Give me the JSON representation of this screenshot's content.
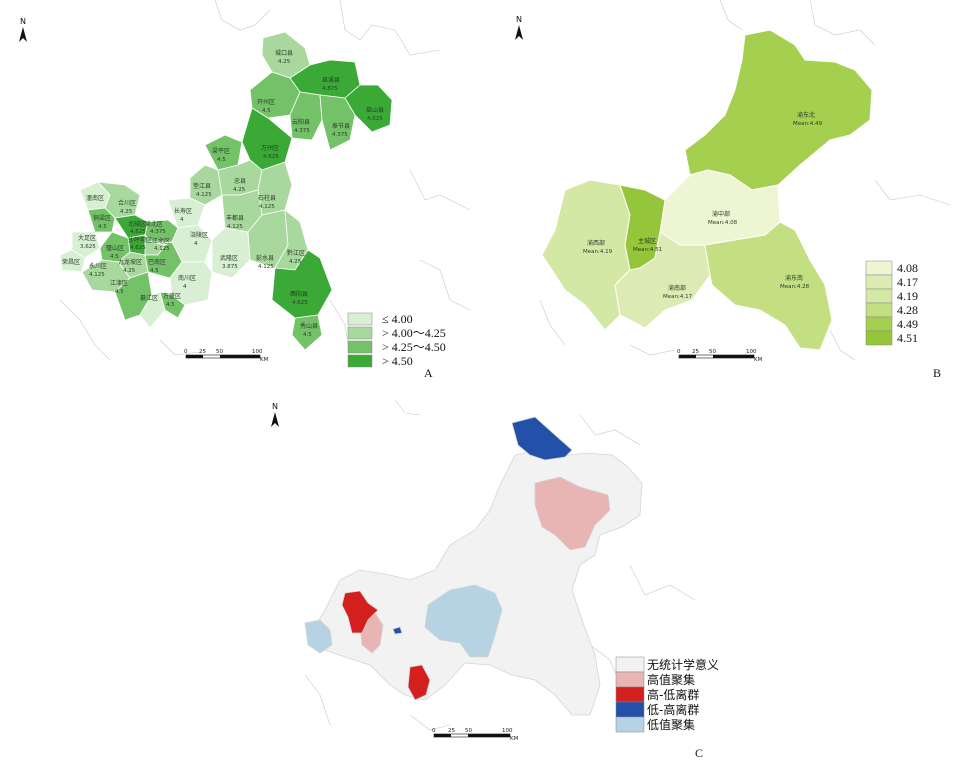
{
  "panels": {
    "a": {
      "letter": "A",
      "legend": [
        "≤ 4.00",
        "> 4.00～4.25",
        "> 4.25～4.50",
        "> 4.50"
      ],
      "legend_colors": [
        "#d8efd3",
        "#a8d89d",
        "#74c267",
        "#3ba936"
      ],
      "districts": [
        {
          "name": "城口县",
          "value": "4.25"
        },
        {
          "name": "巫溪县",
          "value": "4.875"
        },
        {
          "name": "开州区",
          "value": "4.5"
        },
        {
          "name": "云阳县",
          "value": "4.375"
        },
        {
          "name": "奉节县",
          "value": "4.375"
        },
        {
          "name": "巫山县",
          "value": "4.625"
        },
        {
          "name": "梁平区",
          "value": "4.5"
        },
        {
          "name": "万州区",
          "value": "4.625"
        },
        {
          "name": "垫江县",
          "value": "4.125"
        },
        {
          "name": "忠县",
          "value": "4.25"
        },
        {
          "name": "石柱县",
          "value": "4.125"
        },
        {
          "name": "潼南区",
          "value": ""
        },
        {
          "name": "合川区",
          "value": "4.25"
        },
        {
          "name": "铜梁区",
          "value": "4.5"
        },
        {
          "name": "长寿区",
          "value": "4"
        },
        {
          "name": "丰都县",
          "value": "4.125"
        },
        {
          "name": "大足区",
          "value": "3.625"
        },
        {
          "name": "北碚区",
          "value": "4.625"
        },
        {
          "name": "渝北区",
          "value": "4.375"
        },
        {
          "name": "沙坪坝区",
          "value": "4.625"
        },
        {
          "name": "江北区",
          "value": "4.125"
        },
        {
          "name": "涪陵区",
          "value": "4"
        },
        {
          "name": "荣昌区",
          "value": ""
        },
        {
          "name": "璧山区",
          "value": "4.5"
        },
        {
          "name": "九龙坡区",
          "value": "4.25"
        },
        {
          "name": "巴南区",
          "value": "4.5"
        },
        {
          "name": "武隆区",
          "value": "3.875"
        },
        {
          "name": "彭水县",
          "value": "4.125"
        },
        {
          "name": "黔江区",
          "value": "4.25"
        },
        {
          "name": "永川区",
          "value": "4.125"
        },
        {
          "name": "江津区",
          "value": "4.5"
        },
        {
          "name": "南川区",
          "value": "4"
        },
        {
          "name": "綦江区",
          "value": ""
        },
        {
          "name": "万盛区",
          "value": "4.5"
        },
        {
          "name": "酉阳县",
          "value": "4.625"
        },
        {
          "name": "秀山县",
          "value": "4.5"
        }
      ]
    },
    "b": {
      "letter": "B",
      "regions": [
        {
          "name": "渝东北",
          "mean": "Mean:4.49",
          "color": "#a5cf4f"
        },
        {
          "name": "渝中部",
          "mean": "Mean:4.08",
          "color": "#eef5d2"
        },
        {
          "name": "渝西部",
          "mean": "Mean:4.19",
          "color": "#d4e8a6"
        },
        {
          "name": "主城区",
          "mean": "Mean:4.51",
          "color": "#94c53a"
        },
        {
          "name": "渝南部",
          "mean": "Mean:4.17",
          "color": "#dcebb3"
        },
        {
          "name": "渝东南",
          "mean": "Mean:4.28",
          "color": "#c3df82"
        }
      ],
      "legend": [
        "4.08",
        "4.17",
        "4.19",
        "4.28",
        "4.49",
        "4.51"
      ],
      "legend_colors": [
        "#eef5d2",
        "#dcebb3",
        "#d4e8a6",
        "#c3df82",
        "#a5cf4f",
        "#94c53a"
      ]
    },
    "c": {
      "letter": "C",
      "legend": [
        "无统计学意义",
        "高值聚集",
        "高-低离群",
        "低-高离群",
        "低值聚集"
      ],
      "legend_colors": [
        "#f2f2f2",
        "#e8b4b4",
        "#d41f1f",
        "#2350a8",
        "#b5d3e3"
      ]
    }
  },
  "scale": {
    "ticks": [
      "0",
      "25",
      "50",
      "100"
    ],
    "unit": "KM"
  },
  "north": "N",
  "icons": {
    "north": "north-arrow-icon"
  }
}
